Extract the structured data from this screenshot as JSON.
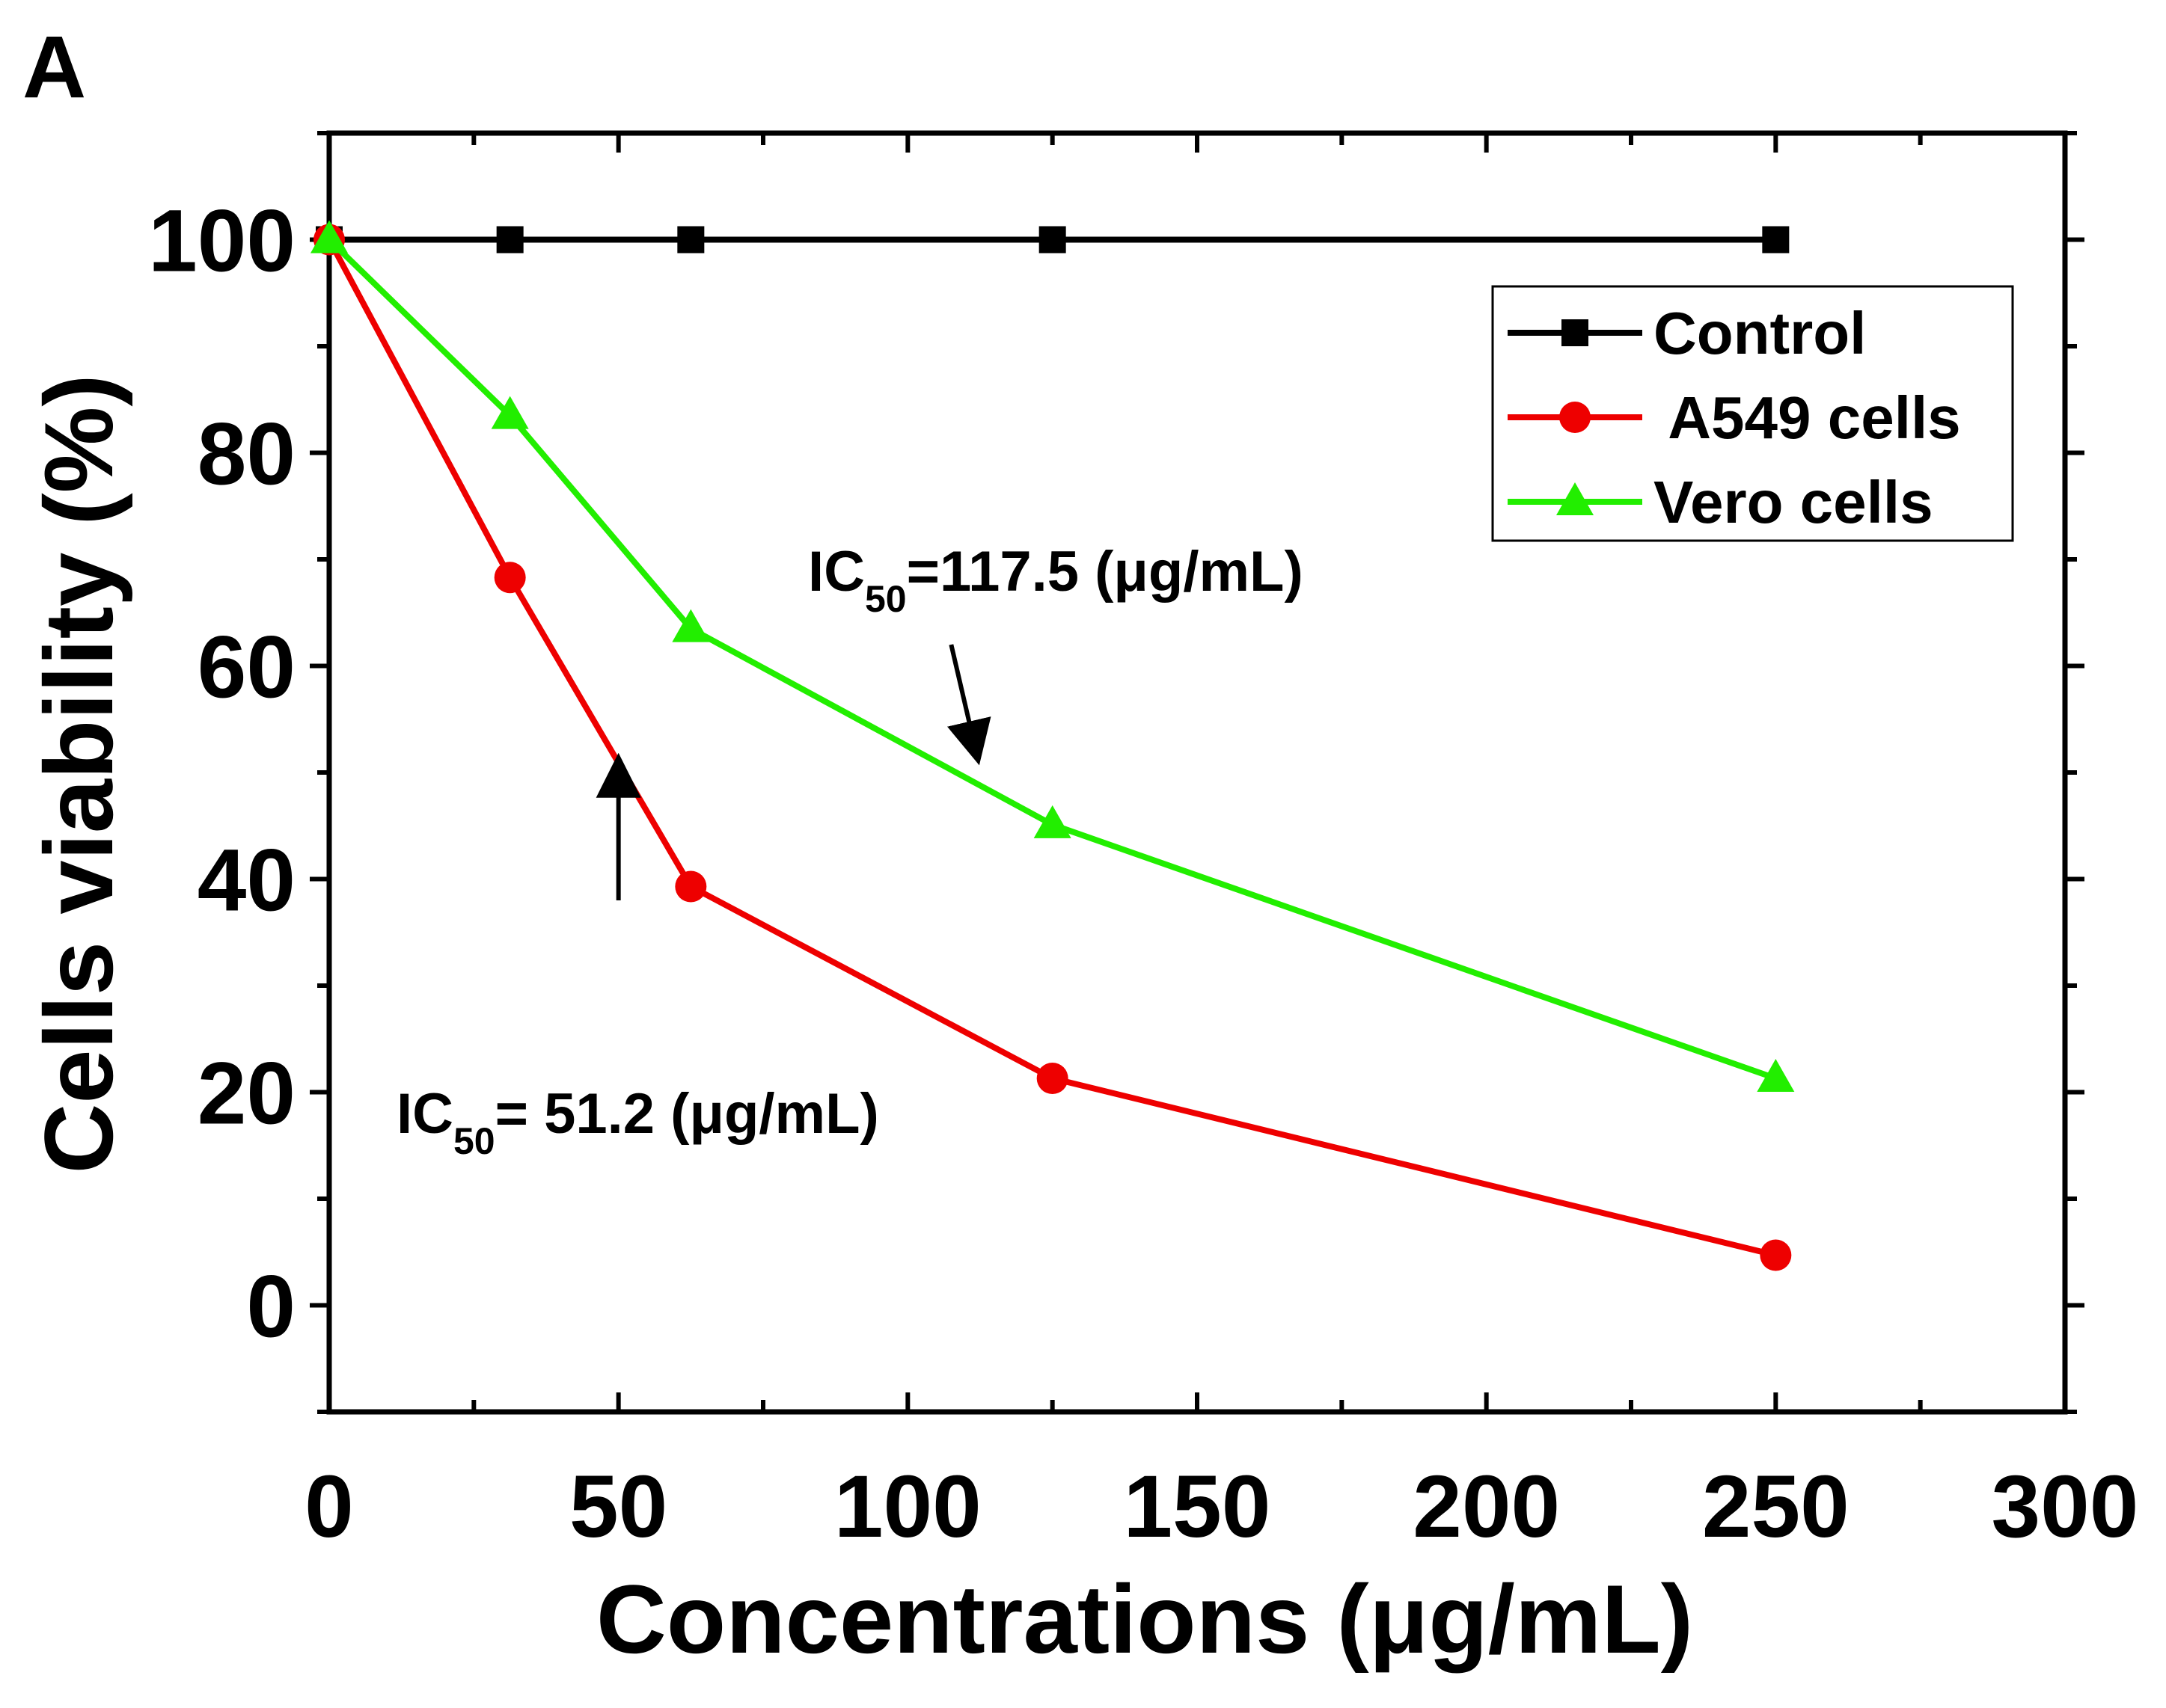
{
  "panel_label": "A",
  "colors": {
    "axis": "#000000",
    "control": "#000000",
    "a549": "#ee0000",
    "vero": "#22ee00",
    "background": "#ffffff"
  },
  "chart_data": {
    "type": "line",
    "title": "",
    "xlabel": "Concentrations (μg/mL)",
    "ylabel": "Cells viability (%)",
    "xlim": [
      0,
      300
    ],
    "ylim": [
      -10,
      110
    ],
    "x_ticks": [
      0,
      50,
      100,
      150,
      200,
      250,
      300
    ],
    "y_ticks": [
      0,
      20,
      40,
      60,
      80,
      100
    ],
    "grid": false,
    "legend_position": "top-right",
    "series": [
      {
        "name": "Control",
        "marker": "square",
        "color": "#000000",
        "x": [
          0,
          31.25,
          62.5,
          125,
          250
        ],
        "y": [
          100,
          100,
          100,
          100,
          100
        ]
      },
      {
        "name": " A549 cells",
        "marker": "circle",
        "color": "#ee0000",
        "x": [
          0,
          31.25,
          62.5,
          125,
          250
        ],
        "y": [
          100,
          68.3,
          39.3,
          21.3,
          4.7
        ]
      },
      {
        "name": "Vero cells",
        "marker": "triangle",
        "color": "#22ee00",
        "x": [
          0,
          31.25,
          62.5,
          125,
          250
        ],
        "y": [
          100,
          83.5,
          63.5,
          45.1,
          21.3
        ]
      }
    ],
    "annotations": [
      {
        "id": "vero_ic50",
        "prefix": "IC",
        "sub": "50",
        "text": "=117.5 (μg/mL)",
        "arrow_from": [
          107.5,
          62
        ],
        "arrow_to": [
          112,
          51.5
        ]
      },
      {
        "id": "a549_ic50",
        "prefix": "IC",
        "sub": "50",
        "text": "= 51.2 (μg/mL)",
        "arrow_from": [
          50,
          38
        ],
        "arrow_to": [
          50,
          51
        ]
      }
    ]
  }
}
